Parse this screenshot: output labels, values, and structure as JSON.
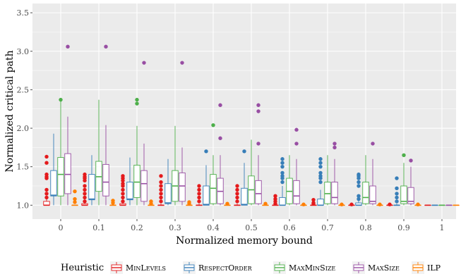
{
  "chart_data": {
    "type": "boxplot",
    "xlabel": "Normalized memory bound",
    "ylabel": "Normalized critical path",
    "categories": [
      "0",
      "0.1",
      "0.2",
      "0.3",
      "0.4",
      "0.5",
      "0.6",
      "0.7",
      "0.8",
      "0.9",
      "1"
    ],
    "ylim": [
      0.82,
      3.62
    ],
    "yticks": [
      1.0,
      1.5,
      2.0,
      2.5,
      3.0,
      3.5
    ],
    "ytick_labels": [
      "1.0",
      "1.5",
      "2.0",
      "2.5",
      "3.0",
      "3.5"
    ],
    "grid": true,
    "legend_position": "bottom",
    "legend_title": "Heuristic",
    "series": [
      {
        "name": "MinLevels",
        "color": "#e41a1c",
        "boxes": [
          {
            "min": 1.0,
            "q1": 1.0,
            "median": 1.0,
            "q3": 1.05,
            "max": 1.1,
            "outliers": [
              1.63,
              1.55,
              1.4,
              1.37,
              1.35,
              1.2,
              1.15,
              1.1
            ]
          },
          {
            "min": 1.0,
            "q1": 1.0,
            "median": 1.0,
            "q3": 1.02,
            "max": 1.05,
            "outliers": [
              1.4,
              1.37,
              1.35,
              1.32,
              1.25,
              1.2,
              1.15,
              1.1,
              1.05
            ]
          },
          {
            "min": 1.0,
            "q1": 1.0,
            "median": 1.0,
            "q3": 1.02,
            "max": 1.05,
            "outliers": [
              1.38,
              1.35,
              1.32,
              1.28,
              1.25,
              1.2,
              1.15,
              1.1,
              1.05
            ]
          },
          {
            "min": 1.0,
            "q1": 1.0,
            "median": 1.0,
            "q3": 1.0,
            "max": 1.02,
            "outliers": [
              1.38,
              1.3,
              1.25,
              1.2,
              1.15,
              1.1,
              1.05
            ]
          },
          {
            "min": 1.0,
            "q1": 1.0,
            "median": 1.0,
            "q3": 1.0,
            "max": 1.02,
            "outliers": [
              1.25,
              1.2,
              1.15,
              1.1,
              1.05
            ]
          },
          {
            "min": 1.0,
            "q1": 1.0,
            "median": 1.0,
            "q3": 1.0,
            "max": 1.02,
            "outliers": [
              1.25,
              1.2,
              1.15,
              1.1,
              1.05
            ]
          },
          {
            "min": 1.0,
            "q1": 1.0,
            "median": 1.0,
            "q3": 1.0,
            "max": 1.0,
            "outliers": [
              1.12,
              1.08,
              1.05,
              1.02
            ]
          },
          {
            "min": 1.0,
            "q1": 1.0,
            "median": 1.0,
            "q3": 1.0,
            "max": 1.0,
            "outliers": [
              1.07,
              1.03,
              1.02
            ]
          },
          {
            "min": 1.0,
            "q1": 1.0,
            "median": 1.0,
            "q3": 1.0,
            "max": 1.0,
            "outliers": [
              1.01
            ]
          },
          {
            "min": 1.0,
            "q1": 1.0,
            "median": 1.0,
            "q3": 1.0,
            "max": 1.0,
            "outliers": [
              1.01
            ]
          },
          {
            "min": 1.0,
            "q1": 1.0,
            "median": 1.0,
            "q3": 1.0,
            "max": 1.0,
            "outliers": []
          }
        ]
      },
      {
        "name": "RespectOrder",
        "color": "#377eb8",
        "boxes": [
          {
            "min": 1.0,
            "q1": 1.12,
            "median": 1.13,
            "q3": 1.45,
            "max": 1.93,
            "outliers": []
          },
          {
            "min": 1.0,
            "q1": 1.07,
            "median": 1.08,
            "q3": 1.4,
            "max": 1.65,
            "outliers": []
          },
          {
            "min": 1.0,
            "q1": 1.07,
            "median": 1.08,
            "q3": 1.3,
            "max": 1.62,
            "outliers": []
          },
          {
            "min": 1.0,
            "q1": 1.02,
            "median": 1.03,
            "q3": 1.28,
            "max": 1.6,
            "outliers": []
          },
          {
            "min": 1.0,
            "q1": 1.0,
            "median": 1.01,
            "q3": 1.25,
            "max": 1.52,
            "outliers": [
              1.7
            ]
          },
          {
            "min": 1.0,
            "q1": 1.0,
            "median": 1.01,
            "q3": 1.22,
            "max": 1.55,
            "outliers": [
              1.7
            ]
          },
          {
            "min": 1.0,
            "q1": 1.0,
            "median": 1.0,
            "q3": 1.1,
            "max": 1.25,
            "outliers": [
              1.6,
              1.55,
              1.5,
              1.42,
              1.38,
              1.35,
              1.3
            ]
          },
          {
            "min": 1.0,
            "q1": 1.0,
            "median": 1.0,
            "q3": 1.08,
            "max": 1.2,
            "outliers": [
              1.6,
              1.55,
              1.5,
              1.42,
              1.38,
              1.35,
              1.3
            ]
          },
          {
            "min": 1.0,
            "q1": 1.0,
            "median": 1.0,
            "q3": 1.03,
            "max": 1.07,
            "outliers": [
              1.4,
              1.38,
              1.35,
              1.3,
              1.25,
              1.12,
              1.08
            ]
          },
          {
            "min": 1.0,
            "q1": 1.0,
            "median": 1.0,
            "q3": 1.0,
            "max": 1.02,
            "outliers": [
              1.35,
              1.22,
              1.15,
              1.1,
              1.05
            ]
          },
          {
            "min": 1.0,
            "q1": 1.0,
            "median": 1.0,
            "q3": 1.0,
            "max": 1.0,
            "outliers": []
          }
        ]
      },
      {
        "name": "MaxMinSize",
        "color": "#4daf4a",
        "boxes": [
          {
            "min": 1.0,
            "q1": 1.12,
            "median": 1.4,
            "q3": 1.62,
            "max": 2.35,
            "outliers": [
              2.37
            ]
          },
          {
            "min": 1.0,
            "q1": 1.18,
            "median": 1.37,
            "q3": 1.57,
            "max": 2.37,
            "outliers": []
          },
          {
            "min": 1.0,
            "q1": 1.1,
            "median": 1.3,
            "q3": 1.52,
            "max": 2.03,
            "outliers": [
              2.37,
              2.32
            ]
          },
          {
            "min": 1.0,
            "q1": 1.05,
            "median": 1.25,
            "q3": 1.45,
            "max": 2.03,
            "outliers": []
          },
          {
            "min": 1.0,
            "q1": 1.02,
            "median": 1.22,
            "q3": 1.4,
            "max": 1.65,
            "outliers": [
              2.04
            ]
          },
          {
            "min": 1.0,
            "q1": 1.02,
            "median": 1.2,
            "q3": 1.38,
            "max": 1.85,
            "outliers": []
          },
          {
            "min": 1.0,
            "q1": 1.02,
            "median": 1.18,
            "q3": 1.35,
            "max": 1.65,
            "outliers": []
          },
          {
            "min": 1.0,
            "q1": 1.02,
            "median": 1.15,
            "q3": 1.3,
            "max": 1.65,
            "outliers": []
          },
          {
            "min": 1.0,
            "q1": 1.02,
            "median": 1.1,
            "q3": 1.3,
            "max": 1.65,
            "outliers": []
          },
          {
            "min": 1.0,
            "q1": 1.02,
            "median": 1.05,
            "q3": 1.25,
            "max": 1.55,
            "outliers": [
              1.65
            ]
          },
          {
            "min": 1.0,
            "q1": 1.0,
            "median": 1.0,
            "q3": 1.0,
            "max": 1.0,
            "outliers": []
          }
        ]
      },
      {
        "name": "MaxSize",
        "color": "#984ea3",
        "boxes": [
          {
            "min": 1.0,
            "q1": 1.15,
            "median": 1.4,
            "q3": 1.67,
            "max": 2.15,
            "outliers": [
              3.06
            ]
          },
          {
            "min": 1.0,
            "q1": 1.12,
            "median": 1.3,
            "q3": 1.53,
            "max": 2.04,
            "outliers": [
              3.06
            ]
          },
          {
            "min": 1.0,
            "q1": 1.05,
            "median": 1.28,
            "q3": 1.45,
            "max": 1.8,
            "outliers": [
              2.85
            ]
          },
          {
            "min": 1.0,
            "q1": 1.05,
            "median": 1.25,
            "q3": 1.42,
            "max": 1.75,
            "outliers": [
              2.85
            ]
          },
          {
            "min": 1.0,
            "q1": 1.02,
            "median": 1.18,
            "q3": 1.35,
            "max": 1.65,
            "outliers": [
              2.3,
              1.87
            ]
          },
          {
            "min": 1.0,
            "q1": 1.02,
            "median": 1.15,
            "q3": 1.32,
            "max": 1.65,
            "outliers": [
              2.3,
              2.22,
              1.8
            ]
          },
          {
            "min": 1.0,
            "q1": 1.02,
            "median": 1.12,
            "q3": 1.32,
            "max": 1.6,
            "outliers": [
              1.98,
              1.8
            ]
          },
          {
            "min": 1.0,
            "q1": 1.02,
            "median": 1.1,
            "q3": 1.3,
            "max": 1.6,
            "outliers": [
              1.8,
              1.75
            ]
          },
          {
            "min": 1.0,
            "q1": 1.02,
            "median": 1.05,
            "q3": 1.25,
            "max": 1.6,
            "outliers": [
              1.8
            ]
          },
          {
            "min": 1.0,
            "q1": 1.02,
            "median": 1.05,
            "q3": 1.23,
            "max": 1.5,
            "outliers": [
              1.58
            ]
          },
          {
            "min": 1.0,
            "q1": 1.0,
            "median": 1.0,
            "q3": 1.0,
            "max": 1.0,
            "outliers": []
          }
        ]
      },
      {
        "name": "ILP",
        "color": "#ff7f00",
        "boxes": [
          {
            "min": 1.0,
            "q1": 1.0,
            "median": 1.0,
            "q3": 1.0,
            "max": 1.0,
            "outliers": [
              1.18,
              1.08,
              1.04
            ]
          },
          {
            "min": 1.0,
            "q1": 1.0,
            "median": 1.0,
            "q3": 1.0,
            "max": 1.0,
            "outliers": [
              1.06,
              1.03
            ]
          },
          {
            "min": 1.0,
            "q1": 1.0,
            "median": 1.0,
            "q3": 1.0,
            "max": 1.0,
            "outliers": [
              1.05,
              1.02
            ]
          },
          {
            "min": 1.0,
            "q1": 1.0,
            "median": 1.0,
            "q3": 1.0,
            "max": 1.0,
            "outliers": [
              1.04,
              1.02
            ]
          },
          {
            "min": 1.0,
            "q1": 1.0,
            "median": 1.0,
            "q3": 1.0,
            "max": 1.0,
            "outliers": [
              1.02
            ]
          },
          {
            "min": 1.0,
            "q1": 1.0,
            "median": 1.0,
            "q3": 1.0,
            "max": 1.0,
            "outliers": [
              1.02
            ]
          },
          {
            "min": 1.0,
            "q1": 1.0,
            "median": 1.0,
            "q3": 1.0,
            "max": 1.0,
            "outliers": [
              1.01
            ]
          },
          {
            "min": 1.0,
            "q1": 1.0,
            "median": 1.0,
            "q3": 1.0,
            "max": 1.0,
            "outliers": [
              1.01
            ]
          },
          {
            "min": 1.0,
            "q1": 1.0,
            "median": 1.0,
            "q3": 1.0,
            "max": 1.0,
            "outliers": [
              1.01
            ]
          },
          {
            "min": 1.0,
            "q1": 1.0,
            "median": 1.0,
            "q3": 1.0,
            "max": 1.0,
            "outliers": [
              1.01
            ]
          },
          {
            "min": 1.0,
            "q1": 1.0,
            "median": 1.0,
            "q3": 1.0,
            "max": 1.0,
            "outliers": []
          }
        ]
      }
    ]
  }
}
